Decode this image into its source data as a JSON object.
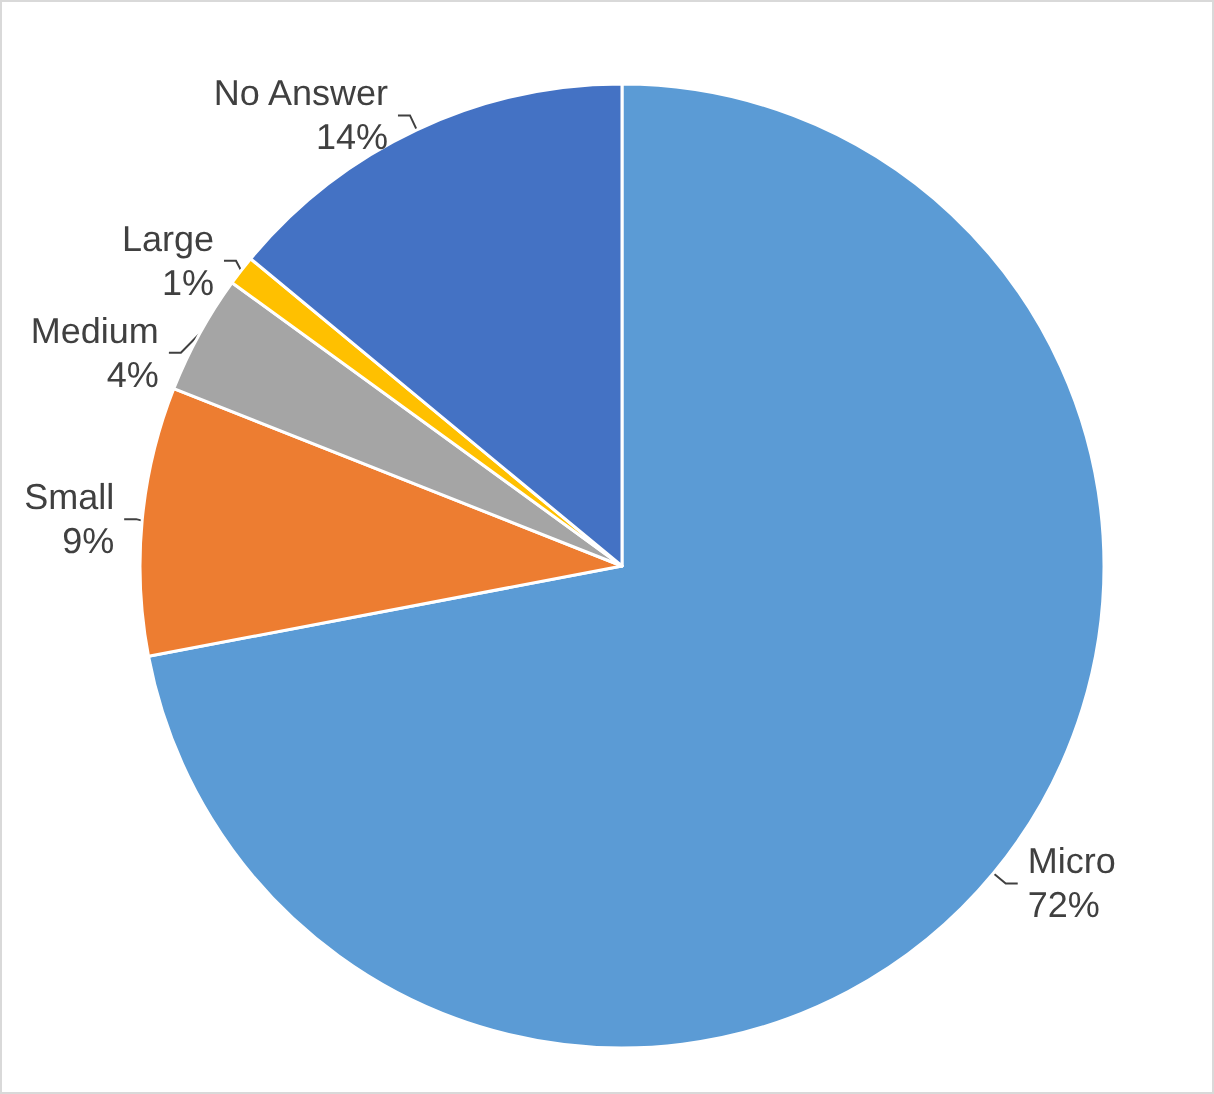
{
  "chart_data": {
    "type": "pie",
    "categories": [
      "Micro",
      "Small",
      "Medium",
      "Large",
      "No Answer"
    ],
    "values": [
      72,
      9,
      4,
      1,
      14
    ],
    "value_labels": [
      "72%",
      "9%",
      "4%",
      "1%",
      "14%"
    ],
    "colors": [
      "#5b9bd5",
      "#ed7d31",
      "#a5a5a5",
      "#ffc000",
      "#4472c4"
    ]
  }
}
